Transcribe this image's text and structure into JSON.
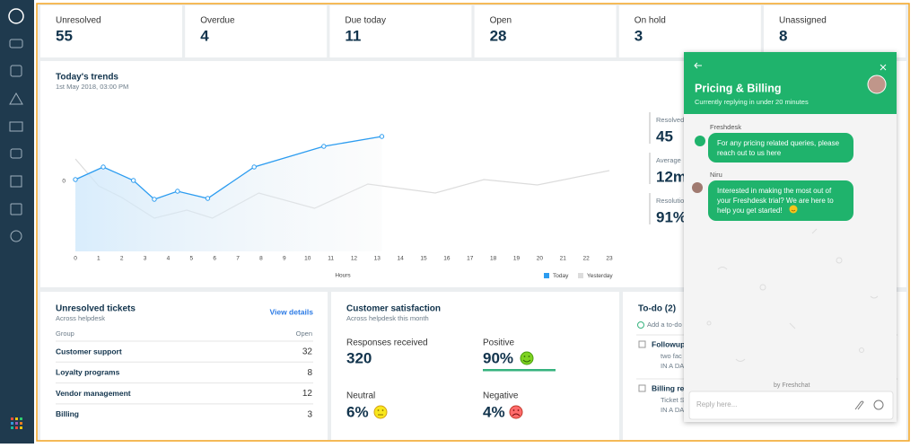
{
  "stats": [
    {
      "label": "Unresolved",
      "value": 55
    },
    {
      "label": "Overdue",
      "value": 4
    },
    {
      "label": "Due today",
      "value": 11
    },
    {
      "label": "Open",
      "value": 28
    },
    {
      "label": "On hold",
      "value": 3
    },
    {
      "label": "Unassigned",
      "value": 8
    }
  ],
  "chart_data": {
    "type": "line",
    "title": "Today's trends",
    "subtitle": "1st May 2018, 03:00 PM",
    "x_label": "Hours",
    "xlim": [
      0,
      23
    ],
    "xticks": [
      0,
      1,
      2,
      3,
      4,
      5,
      6,
      7,
      8,
      9,
      10,
      11,
      12,
      13,
      14,
      15,
      16,
      17,
      18,
      19,
      20,
      21,
      22,
      23
    ],
    "ylim": [
      -19.5,
      18
    ],
    "yticks": [
      0
    ],
    "series": [
      {
        "name": "Today",
        "color": "#2c9cf0",
        "x": [
          0,
          1.2,
          2.5,
          3.4,
          4.4,
          5.7,
          7.7,
          10.7,
          13.2
        ],
        "values": [
          0.5,
          4,
          0.25,
          -5,
          -2.75,
          -4.75,
          4,
          9.75,
          12.5
        ]
      },
      {
        "name": "Yesterday",
        "color": "#dcdcdc",
        "x": [
          0,
          1,
          2,
          3.4,
          4.8,
          5.9,
          7.9,
          10.3,
          12.6,
          15.5,
          17.6,
          19.9,
          23
        ],
        "values": [
          6.25,
          -1.25,
          -4.5,
          -10.25,
          -8,
          -10.25,
          -3.25,
          -7.5,
          -0.75,
          -3.25,
          0.5,
          -1,
          3
        ]
      }
    ]
  },
  "trend_stats": [
    {
      "label": "Resolved",
      "value": "45"
    },
    {
      "label": "Average",
      "value": "12m"
    },
    {
      "label": "Resolution",
      "value": "91%"
    }
  ],
  "unresolved": {
    "title": "Unresolved tickets",
    "subtitle": "Across helpdesk",
    "link": "View details",
    "columns": [
      "Group",
      "Open"
    ],
    "rows": [
      [
        "Customer support",
        32
      ],
      [
        "Loyalty programs",
        8
      ],
      [
        "Vendor management",
        12
      ],
      [
        "Billing",
        3
      ]
    ]
  },
  "satisfaction": {
    "title": "Customer satisfaction",
    "subtitle": "Across helpdesk this month",
    "responses_label": "Responses received",
    "responses": 320,
    "positive_label": "Positive",
    "positive": "90%",
    "neutral_label": "Neutral",
    "neutral": "6%",
    "negative_label": "Negative",
    "negative": "4%"
  },
  "todo": {
    "title": "To-do (2)",
    "add": "Add a to-do",
    "items": [
      {
        "title": "Followup",
        "detail": "two fac",
        "due": "IN A DAY"
      },
      {
        "title": "Billing re",
        "detail": "Ticket S",
        "due": "IN A DAY"
      }
    ]
  },
  "chat": {
    "title": "Pricing & Billing",
    "status": "Currently replying in under 20 minutes",
    "messages": [
      {
        "sender": "Freshdesk",
        "lines": [
          "For any pricing related queries, please",
          "reach out to us here"
        ]
      },
      {
        "sender": "Niru",
        "lines": [
          "Interested in making the most out of",
          "your Freshdesk trial? We are here to",
          "help you get started!"
        ]
      }
    ],
    "branding": "by Freshchat",
    "placeholder": "Reply here..."
  }
}
